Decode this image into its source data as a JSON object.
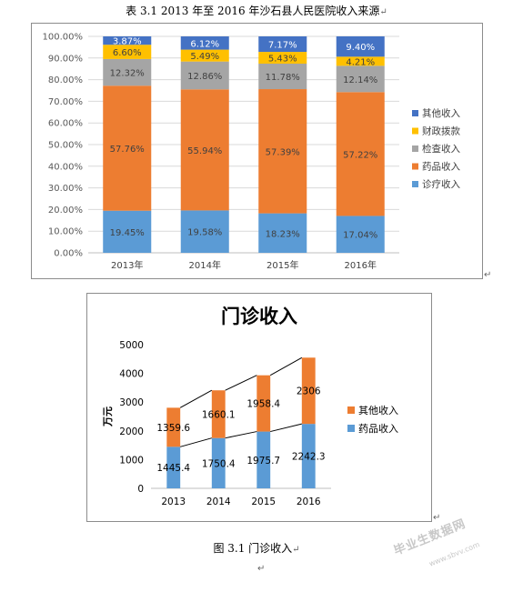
{
  "document": {
    "table_title": "表 3.1  2013 年至 2016 年沙石县人民医院收入来源",
    "figure_caption": "图 3.1  门诊收入",
    "watermark": "毕业生数据网",
    "watermark_url": "www.sbvv.com",
    "paragraph_mark": "↵"
  },
  "chart_data": [
    {
      "type": "bar",
      "stacked": "percent",
      "categories": [
        "2013年",
        "2014年",
        "2015年",
        "2016年"
      ],
      "series": [
        {
          "name": "诊疗收入",
          "color": "#5b9bd5",
          "values": [
            19.45,
            19.58,
            18.23,
            17.04
          ],
          "labels": [
            "19.45%",
            "19.58%",
            "18.23%",
            "17.04%"
          ]
        },
        {
          "name": "药品收入",
          "color": "#ed7d31",
          "values": [
            57.76,
            55.94,
            57.39,
            57.22
          ],
          "labels": [
            "57.76%",
            "55.94%",
            "57.39%",
            "57.22%"
          ]
        },
        {
          "name": "检查收入",
          "color": "#a5a5a5",
          "values": [
            12.32,
            12.86,
            11.78,
            12.14
          ],
          "labels": [
            "12.32%",
            "12.86%",
            "11.78%",
            "12.14%"
          ]
        },
        {
          "name": "财政拨款",
          "color": "#ffc000",
          "values": [
            6.6,
            5.49,
            5.43,
            4.21
          ],
          "labels": [
            "6.60%",
            "5.49%",
            "5.43%",
            "4.21%"
          ]
        },
        {
          "name": "其他收入",
          "color": "#4472c4",
          "values": [
            3.87,
            6.12,
            7.17,
            9.4
          ],
          "labels": [
            "3.87%",
            "6.12%",
            "7.17%",
            "9.40%"
          ]
        }
      ],
      "ylim": [
        0,
        100
      ],
      "yticks": [
        "0.00%",
        "10.00%",
        "20.00%",
        "30.00%",
        "40.00%",
        "50.00%",
        "60.00%",
        "70.00%",
        "80.00%",
        "90.00%",
        "100.00%"
      ],
      "grid": true,
      "legend": "right"
    },
    {
      "type": "bar",
      "stacked": true,
      "title": "门诊收入",
      "categories": [
        "2013",
        "2014",
        "2015",
        "2016"
      ],
      "series": [
        {
          "name": "药品收入",
          "color": "#5b9bd5",
          "values": [
            1445.4,
            1750.4,
            1975.7,
            2242.3
          ],
          "labels": [
            "1445.4",
            "1750.4",
            "1975.7",
            "2242.3"
          ]
        },
        {
          "name": "其他收入",
          "color": "#ed7d31",
          "values": [
            1359.6,
            1660.1,
            1958.4,
            2306
          ],
          "labels": [
            "1359.6",
            "1660.1",
            "1958.4",
            "2306"
          ]
        }
      ],
      "ylabel": "万元",
      "ylim": [
        0,
        5000
      ],
      "yticks": [
        "0",
        "1000",
        "2000",
        "3000",
        "4000",
        "5000"
      ],
      "series_lines": true,
      "grid": false,
      "legend": "right"
    }
  ]
}
